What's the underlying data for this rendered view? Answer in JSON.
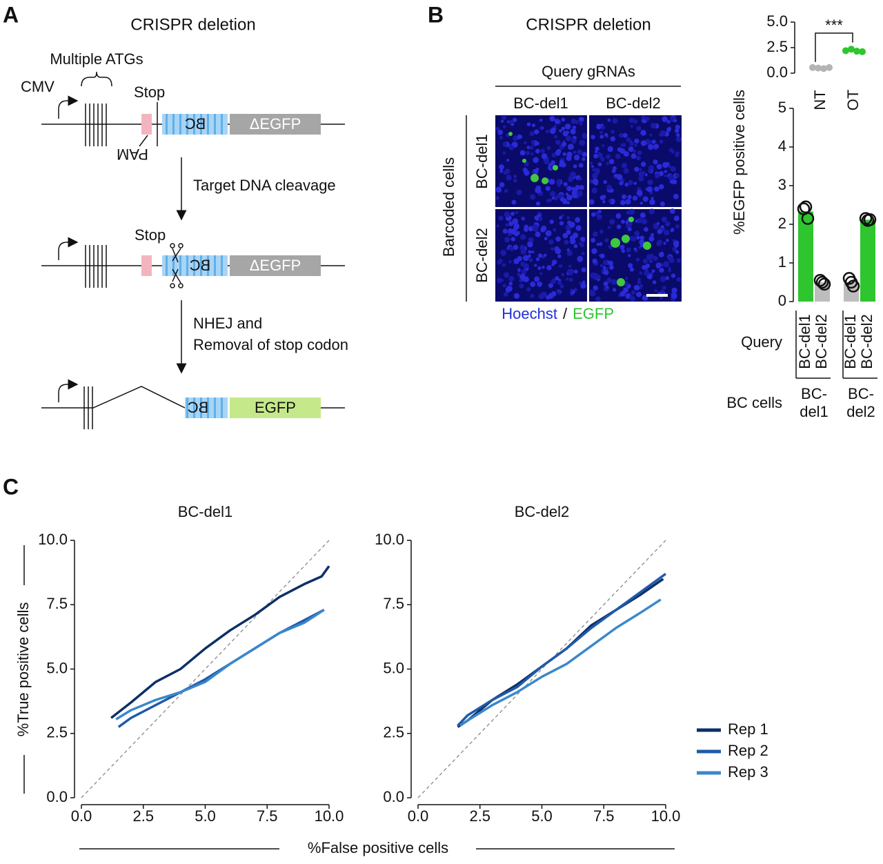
{
  "figure": {
    "panel_a": {
      "label": "A",
      "title": "CRISPR deletion",
      "atgs": "Multiple ATGs",
      "promoter": "CMV",
      "stop": "Stop",
      "barcode": "BC",
      "reporter": "ΔEGFP",
      "pam": "PAM",
      "step1": "Target DNA cleavage",
      "stop2": "Stop",
      "barcode2": "BC",
      "reporter2": "ΔEGFP",
      "step2": [
        "NHEJ and",
        "Removal of stop codon"
      ],
      "barcode3": "BC",
      "reporter3": "EGFP"
    },
    "panel_b": {
      "label": "B",
      "title": "CRISPR deletion",
      "columns_title": "Query gRNAs",
      "columns": [
        "BC-del1",
        "BC-del2"
      ],
      "rows_title": "Barcoded cells",
      "rows": [
        "BC-del1",
        "BC-del2"
      ],
      "stain": [
        "Hoechst",
        "/",
        "EGFP"
      ]
    },
    "panel_c": {
      "label": "C",
      "x_label": "%False positive cells",
      "y_label": "%True positive cells"
    }
  },
  "chart_data": [
    {
      "type": "strip",
      "categories": [
        "NT",
        "OT"
      ],
      "values": [
        [
          0.55,
          0.5,
          0.45,
          0.55
        ],
        [
          2.2,
          2.35,
          2.15,
          2.1
        ]
      ],
      "colors": [
        "#b4b4b4",
        "#2ec52e"
      ],
      "annotation": "***",
      "ylim": [
        0,
        5
      ],
      "yticks": [
        {
          "value": 0,
          "label": "0.0"
        },
        {
          "value": 2.5,
          "label": "2.5"
        },
        {
          "value": 5,
          "label": "5.0"
        }
      ]
    },
    {
      "type": "bar",
      "y_label": "%EGFP positive cells",
      "categories": [
        "BC-del1",
        "BC-del2",
        "BC-del1",
        "BC-del2"
      ],
      "category_title": "Query",
      "groups": [
        [
          "BC-",
          "del1"
        ],
        [
          "BC-",
          "del2"
        ]
      ],
      "group_title": "BC cells",
      "values": [
        2.33,
        0.5,
        0.5,
        2.12
      ],
      "points": [
        [
          2.4,
          2.45,
          2.15
        ],
        [
          0.55,
          0.5,
          0.45
        ],
        [
          0.6,
          0.5,
          0.4
        ],
        [
          2.15,
          2.1,
          2.12
        ]
      ],
      "colors": [
        "#2ec52e",
        "#bdbdbd",
        "#bdbdbd",
        "#2ec52e"
      ],
      "ylim": [
        0,
        5
      ],
      "yticks": [
        0,
        1,
        2,
        3,
        4,
        5
      ]
    },
    {
      "type": "line",
      "title": "BC-del1",
      "xlim": [
        0,
        10
      ],
      "ylim": [
        0,
        10
      ],
      "xticks": [
        {
          "value": 0,
          "label": "0.0"
        },
        {
          "value": 2.5,
          "label": "2.5"
        },
        {
          "value": 5,
          "label": "5.0"
        },
        {
          "value": 7.5,
          "label": "7.5"
        },
        {
          "value": 10,
          "label": "10.0"
        }
      ],
      "yticks": [
        {
          "value": 0,
          "label": "0.0"
        },
        {
          "value": 2.5,
          "label": "2.5"
        },
        {
          "value": 5,
          "label": "5.0"
        },
        {
          "value": 7.5,
          "label": "7.5"
        },
        {
          "value": 10,
          "label": "10.0"
        }
      ],
      "series": [
        {
          "name": "Rep 1",
          "color": "#0d2f66",
          "x": [
            1.2,
            2,
            3,
            4,
            5,
            6,
            7,
            8,
            9,
            9.7,
            10
          ],
          "values": [
            3.1,
            3.7,
            4.5,
            5.0,
            5.8,
            6.5,
            7.1,
            7.8,
            8.3,
            8.6,
            9.0
          ]
        },
        {
          "name": "Rep 2",
          "color": "#1f5aa8",
          "x": [
            1.5,
            2,
            3,
            4,
            5,
            6,
            7,
            8,
            9,
            9.8
          ],
          "values": [
            2.75,
            3.1,
            3.6,
            4.1,
            4.6,
            5.2,
            5.8,
            6.4,
            6.9,
            7.3
          ]
        },
        {
          "name": "Rep 3",
          "color": "#3a87cc",
          "x": [
            1.4,
            2,
            3,
            4,
            5,
            6,
            7,
            8,
            9,
            9.8
          ],
          "values": [
            3.05,
            3.4,
            3.8,
            4.1,
            4.5,
            5.2,
            5.8,
            6.4,
            6.8,
            7.3
          ]
        }
      ]
    },
    {
      "type": "line",
      "title": "BC-del2",
      "legend": "right",
      "xlim": [
        0,
        10
      ],
      "ylim": [
        0,
        10
      ],
      "xticks": [
        {
          "value": 0,
          "label": "0.0"
        },
        {
          "value": 2.5,
          "label": "2.5"
        },
        {
          "value": 5,
          "label": "5.0"
        },
        {
          "value": 7.5,
          "label": "7.5"
        },
        {
          "value": 10,
          "label": "10.0"
        }
      ],
      "yticks": [
        {
          "value": 0,
          "label": "0.0"
        },
        {
          "value": 2.5,
          "label": "2.5"
        },
        {
          "value": 5,
          "label": "5.0"
        },
        {
          "value": 7.5,
          "label": "7.5"
        },
        {
          "value": 10,
          "label": "10.0"
        }
      ],
      "series": [
        {
          "name": "Rep 1",
          "color": "#0d2f66",
          "x": [
            1.6,
            2,
            3,
            4,
            5,
            6,
            7,
            8,
            9,
            9.9
          ],
          "values": [
            2.75,
            3.0,
            3.8,
            4.4,
            5.1,
            5.8,
            6.7,
            7.3,
            7.9,
            8.5
          ]
        },
        {
          "name": "Rep 2",
          "color": "#1f5aa8",
          "x": [
            1.6,
            2,
            3,
            4,
            5,
            6,
            7,
            8,
            9,
            10
          ],
          "values": [
            2.8,
            3.2,
            3.8,
            4.3,
            5.1,
            5.8,
            6.6,
            7.3,
            8.0,
            8.7
          ]
        },
        {
          "name": "Rep 3",
          "color": "#3a87cc",
          "x": [
            1.7,
            2,
            3,
            4,
            5,
            6,
            7,
            8,
            9,
            9.8
          ],
          "values": [
            2.8,
            3.0,
            3.6,
            4.1,
            4.7,
            5.2,
            5.9,
            6.6,
            7.2,
            7.7
          ]
        }
      ]
    }
  ]
}
